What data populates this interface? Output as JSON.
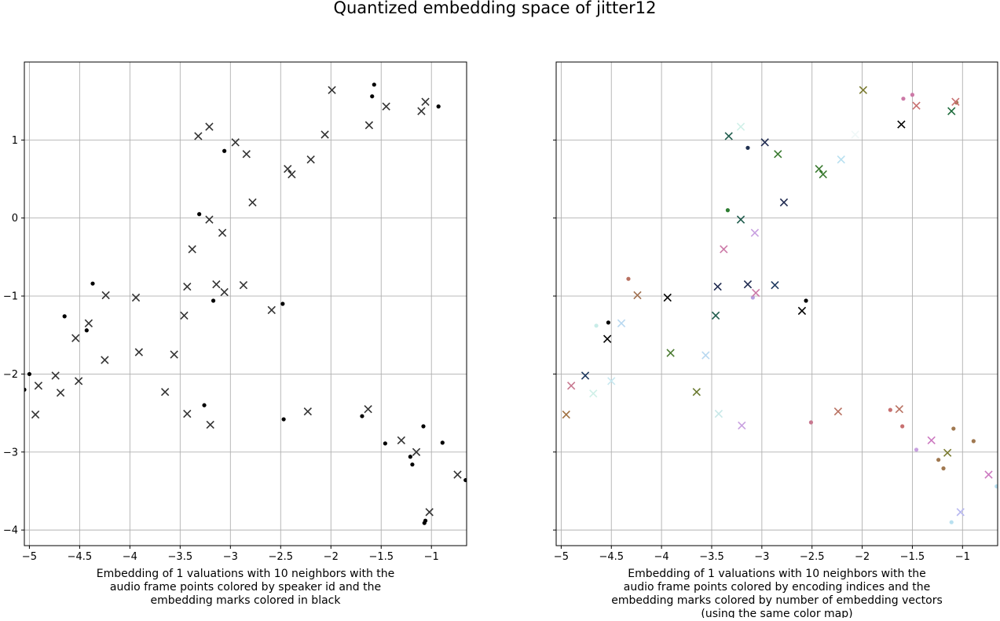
{
  "figure": {
    "title": "Quantized embedding space of jitter12"
  },
  "chart_data": [
    {
      "type": "scatter",
      "xlabel": "Embedding of 1 valuations with 10 neighbors with the audio frame points colored by speaker id and the embedding marks colored in black",
      "ylabel": "",
      "xlim": [
        -5.05,
        -0.65
      ],
      "ylim": [
        -4.2,
        2.0
      ],
      "xticks": [
        -5.0,
        -4.5,
        -4.0,
        -3.5,
        -3.0,
        -2.5,
        -2.0,
        -1.5,
        -1.0
      ],
      "yticks": [
        -4,
        -3,
        -2,
        -1,
        0,
        1
      ],
      "grid": true,
      "series": [
        {
          "marker": "dot",
          "color": "#000000",
          "points": [
            [
              -1.57,
              1.71
            ],
            [
              -1.59,
              1.56
            ],
            [
              -0.93,
              1.43
            ],
            [
              -3.06,
              0.86
            ],
            [
              -3.31,
              0.05
            ],
            [
              -4.37,
              -0.84
            ],
            [
              -3.17,
              -1.06
            ],
            [
              -2.48,
              -1.1
            ],
            [
              -4.65,
              -1.26
            ],
            [
              -4.43,
              -1.44
            ],
            [
              -5.0,
              -2.0
            ],
            [
              -5.05,
              -2.2
            ],
            [
              -3.26,
              -2.4
            ],
            [
              -2.47,
              -2.58
            ],
            [
              -1.69,
              -2.54
            ],
            [
              -1.08,
              -2.67
            ],
            [
              -1.46,
              -2.89
            ],
            [
              -0.89,
              -2.88
            ],
            [
              -1.21,
              -3.06
            ],
            [
              -1.19,
              -3.16
            ],
            [
              -0.66,
              -3.36
            ],
            [
              -1.06,
              -3.88
            ],
            [
              -1.07,
              -3.91
            ]
          ]
        },
        {
          "marker": "x",
          "color": "#333333",
          "points": [
            [
              -1.99,
              1.64
            ],
            [
              -1.06,
              1.49
            ],
            [
              -1.45,
              1.43
            ],
            [
              -1.1,
              1.37
            ],
            [
              -1.62,
              1.19
            ],
            [
              -3.21,
              1.17
            ],
            [
              -3.32,
              1.05
            ],
            [
              -2.06,
              1.07
            ],
            [
              -2.95,
              0.97
            ],
            [
              -2.84,
              0.82
            ],
            [
              -2.2,
              0.75
            ],
            [
              -2.43,
              0.63
            ],
            [
              -2.39,
              0.56
            ],
            [
              -2.78,
              0.2
            ],
            [
              -3.21,
              -0.02
            ],
            [
              -3.08,
              -0.19
            ],
            [
              -3.38,
              -0.4
            ],
            [
              -4.24,
              -0.99
            ],
            [
              -3.94,
              -1.02
            ],
            [
              -3.43,
              -0.88
            ],
            [
              -3.14,
              -0.85
            ],
            [
              -3.06,
              -0.95
            ],
            [
              -2.87,
              -0.86
            ],
            [
              -2.59,
              -1.18
            ],
            [
              -3.46,
              -1.25
            ],
            [
              -4.41,
              -1.35
            ],
            [
              -4.54,
              -1.54
            ],
            [
              -3.91,
              -1.72
            ],
            [
              -3.56,
              -1.75
            ],
            [
              -4.25,
              -1.82
            ],
            [
              -4.74,
              -2.02
            ],
            [
              -4.91,
              -2.15
            ],
            [
              -4.51,
              -2.09
            ],
            [
              -4.69,
              -2.24
            ],
            [
              -3.65,
              -2.23
            ],
            [
              -4.94,
              -2.52
            ],
            [
              -3.43,
              -2.51
            ],
            [
              -3.2,
              -2.65
            ],
            [
              -2.23,
              -2.48
            ],
            [
              -1.63,
              -2.45
            ],
            [
              -1.3,
              -2.85
            ],
            [
              -1.15,
              -3.0
            ],
            [
              -0.74,
              -3.29
            ],
            [
              -1.02,
              -3.77
            ]
          ]
        }
      ]
    },
    {
      "type": "scatter",
      "xlabel": "Embedding of 1 valuations with 10 neighbors with the audio frame points colored by encoding indices and the embedding marks colored by number of embedding vectors (using the same color map)",
      "ylabel": "",
      "xlim": [
        -5.05,
        -0.65
      ],
      "ylim": [
        -4.2,
        2.0
      ],
      "xticks": [
        -5.0,
        -4.5,
        -4.0,
        -3.5,
        -3.0,
        -2.5,
        -2.0,
        -1.5,
        -1.0
      ],
      "yticks": [
        -4,
        -3,
        -2,
        -1,
        0,
        1
      ],
      "grid": true,
      "series": [
        {
          "marker": "dot",
          "points": [
            {
              "x": -1.5,
              "y": 1.58,
              "color": "#cc79a7"
            },
            {
              "x": -1.59,
              "y": 1.53,
              "color": "#cc79a7"
            },
            {
              "x": -1.06,
              "y": 1.48,
              "color": "#a07850"
            },
            {
              "x": -3.14,
              "y": 0.9,
              "color": "#1f3050"
            },
            {
              "x": -3.34,
              "y": 0.1,
              "color": "#2e7d32"
            },
            {
              "x": -4.33,
              "y": -0.78,
              "color": "#b87060"
            },
            {
              "x": -2.56,
              "y": -1.06,
              "color": "#000000"
            },
            {
              "x": -3.09,
              "y": -1.02,
              "color": "#b8a0e0"
            },
            {
              "x": -4.53,
              "y": -1.34,
              "color": "#000000"
            },
            {
              "x": -4.65,
              "y": -1.38,
              "color": "#c8ece8"
            },
            {
              "x": -2.51,
              "y": -2.62,
              "color": "#c87890"
            },
            {
              "x": -1.72,
              "y": -2.46,
              "color": "#c87070"
            },
            {
              "x": -1.6,
              "y": -2.67,
              "color": "#c87070"
            },
            {
              "x": -1.09,
              "y": -2.7,
              "color": "#a07850"
            },
            {
              "x": -1.46,
              "y": -2.97,
              "color": "#c8a0e0"
            },
            {
              "x": -0.89,
              "y": -2.86,
              "color": "#a07850"
            },
            {
              "x": -1.24,
              "y": -3.1,
              "color": "#a07850"
            },
            {
              "x": -1.19,
              "y": -3.21,
              "color": "#a07850"
            },
            {
              "x": -0.66,
              "y": -3.44,
              "color": "#b8e0f0"
            },
            {
              "x": -1.11,
              "y": -3.9,
              "color": "#b8e0f0"
            }
          ]
        },
        {
          "marker": "x",
          "points": [
            {
              "x": -1.99,
              "y": 1.64,
              "color": "#7a7a30"
            },
            {
              "x": -1.07,
              "y": 1.49,
              "color": "#c87070"
            },
            {
              "x": -1.46,
              "y": 1.44,
              "color": "#c87070"
            },
            {
              "x": -1.11,
              "y": 1.37,
              "color": "#1e6b3c"
            },
            {
              "x": -1.61,
              "y": 1.2,
              "color": "#000000"
            },
            {
              "x": -2.07,
              "y": 1.07,
              "color": "#f0f8f8"
            },
            {
              "x": -3.21,
              "y": 1.17,
              "color": "#d0f0e8"
            },
            {
              "x": -3.33,
              "y": 1.05,
              "color": "#1e5b4c"
            },
            {
              "x": -2.97,
              "y": 0.97,
              "color": "#1f2a50"
            },
            {
              "x": -2.84,
              "y": 0.82,
              "color": "#3a7a30"
            },
            {
              "x": -2.21,
              "y": 0.75,
              "color": "#b8e0f0"
            },
            {
              "x": -2.43,
              "y": 0.63,
              "color": "#3a7a30"
            },
            {
              "x": -2.39,
              "y": 0.56,
              "color": "#3a7a30"
            },
            {
              "x": -2.78,
              "y": 0.2,
              "color": "#1f2a50"
            },
            {
              "x": -3.21,
              "y": -0.02,
              "color": "#1e5b4c"
            },
            {
              "x": -3.07,
              "y": -0.19,
              "color": "#c8a0e0"
            },
            {
              "x": -3.38,
              "y": -0.4,
              "color": "#cc79a7"
            },
            {
              "x": -4.24,
              "y": -0.99,
              "color": "#a07050"
            },
            {
              "x": -3.94,
              "y": -1.02,
              "color": "#000000"
            },
            {
              "x": -3.44,
              "y": -0.88,
              "color": "#1f2a50"
            },
            {
              "x": -3.14,
              "y": -0.85,
              "color": "#1f2a50"
            },
            {
              "x": -3.06,
              "y": -0.96,
              "color": "#cc79a7"
            },
            {
              "x": -2.87,
              "y": -0.86,
              "color": "#1f3a60"
            },
            {
              "x": -2.6,
              "y": -1.19,
              "color": "#000000"
            },
            {
              "x": -3.46,
              "y": -1.25,
              "color": "#1e5b4c"
            },
            {
              "x": -4.4,
              "y": -1.35,
              "color": "#b8d8f0"
            },
            {
              "x": -4.54,
              "y": -1.55,
              "color": "#000000"
            },
            {
              "x": -3.91,
              "y": -1.73,
              "color": "#4a7a30"
            },
            {
              "x": -3.56,
              "y": -1.76,
              "color": "#b8d8f0"
            },
            {
              "x": -4.76,
              "y": -2.02,
              "color": "#1f3a60"
            },
            {
              "x": -4.9,
              "y": -2.15,
              "color": "#c87890"
            },
            {
              "x": -4.5,
              "y": -2.09,
              "color": "#c8e8f0"
            },
            {
              "x": -4.68,
              "y": -2.25,
              "color": "#d0f0e8"
            },
            {
              "x": -3.65,
              "y": -2.23,
              "color": "#6a7a30"
            },
            {
              "x": -4.95,
              "y": -2.52,
              "color": "#a07040"
            },
            {
              "x": -3.43,
              "y": -2.51,
              "color": "#c8e8e8"
            },
            {
              "x": -3.2,
              "y": -2.66,
              "color": "#c8a0e0"
            },
            {
              "x": -2.24,
              "y": -2.48,
              "color": "#b87060"
            },
            {
              "x": -1.63,
              "y": -2.45,
              "color": "#b87060"
            },
            {
              "x": -1.31,
              "y": -2.85,
              "color": "#cc79c0"
            },
            {
              "x": -1.15,
              "y": -3.01,
              "color": "#7a7a30"
            },
            {
              "x": -0.74,
              "y": -3.29,
              "color": "#cc79c0"
            },
            {
              "x": -1.02,
              "y": -3.77,
              "color": "#b8b8f0"
            }
          ]
        }
      ]
    }
  ]
}
